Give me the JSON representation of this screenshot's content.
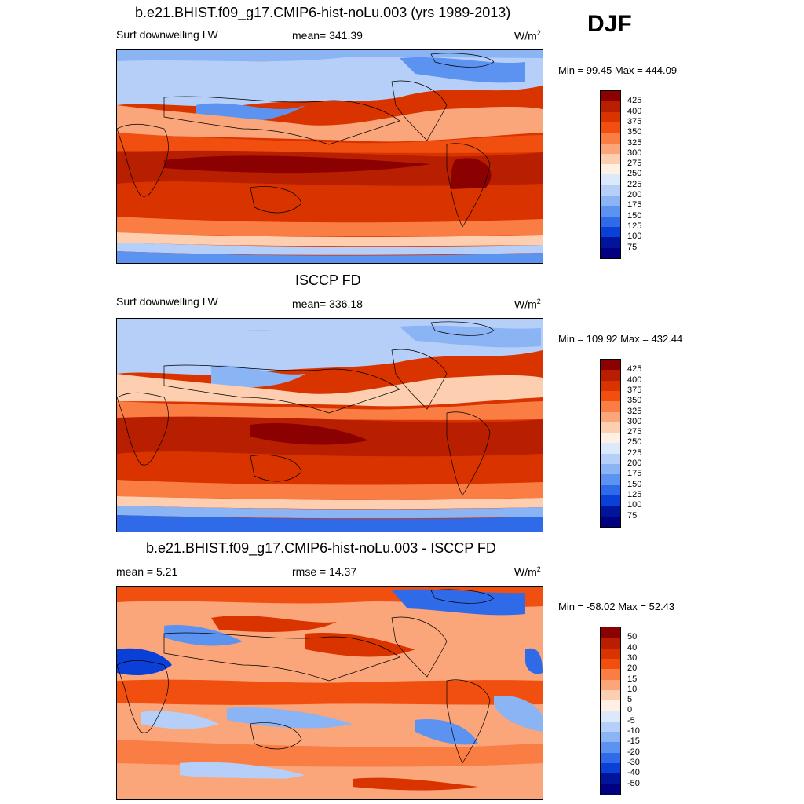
{
  "season": "DJF",
  "panels": [
    {
      "title": "b.e21.BHIST.f09_g17.CMIP6-hist-noLu.003 (yrs 1989-2013)",
      "left_label": "Surf downwelling LW",
      "center_label": "mean= 341.39",
      "units": "W/m",
      "units_sup": "2",
      "minmax": "Min =  99.45 Max = 444.09",
      "colorbar": {
        "labels": [
          "425",
          "400",
          "375",
          "350",
          "325",
          "300",
          "275",
          "250",
          "225",
          "200",
          "175",
          "150",
          "125",
          "100",
          "75"
        ],
        "colors": [
          "#8b0000",
          "#b81e00",
          "#d93300",
          "#f04f0f",
          "#fa7e44",
          "#fba57a",
          "#fdcfb0",
          "#fff0e3",
          "#dbe9fb",
          "#b5cff8",
          "#8bb4f5",
          "#5c92f0",
          "#2f6be8",
          "#0a40d8",
          "#00149c",
          "#000080"
        ]
      }
    },
    {
      "title": "ISCCP FD",
      "left_label": "Surf downwelling LW",
      "center_label": "mean= 336.18",
      "units": "W/m",
      "units_sup": "2",
      "minmax": "Min = 109.92 Max = 432.44",
      "colorbar": {
        "labels": [
          "425",
          "400",
          "375",
          "350",
          "325",
          "300",
          "275",
          "250",
          "225",
          "200",
          "175",
          "150",
          "125",
          "100",
          "75"
        ],
        "colors": [
          "#8b0000",
          "#b81e00",
          "#d93300",
          "#f04f0f",
          "#fa7e44",
          "#fba57a",
          "#fdcfb0",
          "#fff0e3",
          "#dbe9fb",
          "#b5cff8",
          "#8bb4f5",
          "#5c92f0",
          "#2f6be8",
          "#0a40d8",
          "#00149c",
          "#000080"
        ]
      }
    },
    {
      "title": "b.e21.BHIST.f09_g17.CMIP6-hist-noLu.003 - ISCCP FD",
      "left_label": "mean =   5.21",
      "center_label": "rmse =  14.37",
      "units": "W/m",
      "units_sup": "2",
      "minmax": "Min = -58.02 Max =  52.43",
      "colorbar": {
        "labels": [
          "50",
          "40",
          "30",
          "20",
          "15",
          "10",
          "5",
          "0",
          "-5",
          "-10",
          "-15",
          "-20",
          "-30",
          "-40",
          "-50"
        ],
        "colors": [
          "#8b0000",
          "#b81e00",
          "#d93300",
          "#f04f0f",
          "#fa7e44",
          "#fba57a",
          "#fdcfb0",
          "#fff0e3",
          "#dbe9fb",
          "#b5cff8",
          "#8bb4f5",
          "#5c92f0",
          "#2f6be8",
          "#0a40d8",
          "#00149c",
          "#000080"
        ]
      }
    }
  ]
}
